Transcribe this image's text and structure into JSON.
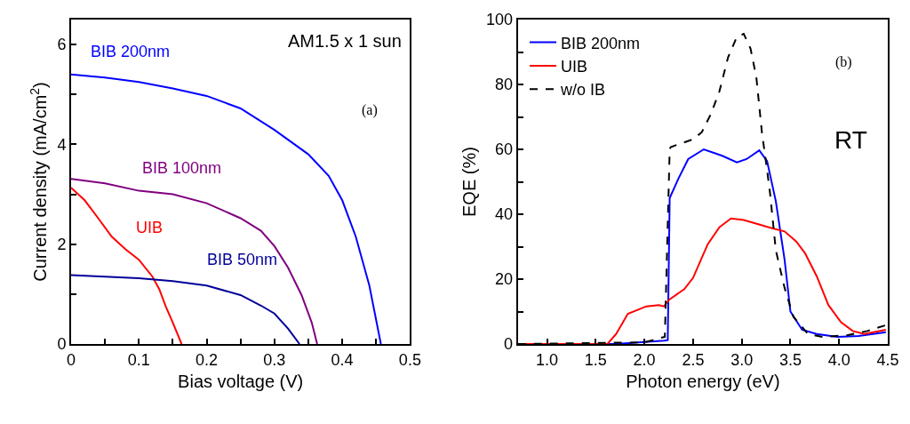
{
  "chart_data": [
    {
      "type": "line",
      "xlabel": "Bias voltage (V)",
      "ylabel": "Current density (mA/cm$^{2}$)",
      "xlim": [
        0,
        0.5
      ],
      "xticks": [
        0,
        0.1,
        0.2,
        0.3,
        0.4,
        0.5,
        {
          "value": 0.05,
          "label": null
        },
        {
          "value": 0.15,
          "label": null
        },
        {
          "value": 0.25,
          "label": null
        },
        {
          "value": 0.35,
          "label": null
        },
        {
          "value": 0.45,
          "label": null
        }
      ],
      "ylim": [
        0,
        6.5
      ],
      "yticks": [
        0,
        2,
        4,
        6,
        {
          "value": 1,
          "label": null
        },
        {
          "value": 3,
          "label": null
        },
        {
          "value": 5,
          "label": null
        }
      ],
      "legend": false,
      "marker": "none",
      "line_style": "solid",
      "annotations": [
        "AM1.5 x 1 sun",
        "(a)"
      ],
      "series": [
        {
          "name": "BIB 200nm",
          "color": "#0000ff",
          "x": [
            0,
            0.05,
            0.1,
            0.15,
            0.2,
            0.25,
            0.3,
            0.35,
            0.38,
            0.4,
            0.42,
            0.44,
            0.457
          ],
          "values": [
            5.4,
            5.34,
            5.25,
            5.12,
            4.97,
            4.72,
            4.29,
            3.8,
            3.37,
            2.88,
            2.15,
            1.17,
            0
          ]
        },
        {
          "name": "BIB 100nm",
          "color": "#800080",
          "x": [
            0,
            0.05,
            0.1,
            0.15,
            0.2,
            0.25,
            0.28,
            0.3,
            0.32,
            0.34,
            0.355,
            0.363
          ],
          "values": [
            3.31,
            3.22,
            3.07,
            3.0,
            2.82,
            2.52,
            2.27,
            1.96,
            1.53,
            0.98,
            0.43,
            0
          ]
        },
        {
          "name": "UIB",
          "color": "#ff0000",
          "x": [
            0,
            0.02,
            0.04,
            0.06,
            0.08,
            0.1,
            0.12,
            0.13,
            0.14,
            0.15,
            0.163
          ],
          "values": [
            3.13,
            2.88,
            2.52,
            2.15,
            1.9,
            1.69,
            1.35,
            1.1,
            0.74,
            0.43,
            0
          ]
        },
        {
          "name": "BIB 50nm",
          "color": "#000099",
          "x": [
            0,
            0.05,
            0.1,
            0.15,
            0.2,
            0.25,
            0.28,
            0.3,
            0.32,
            0.337
          ],
          "values": [
            1.38,
            1.35,
            1.32,
            1.26,
            1.17,
            0.98,
            0.77,
            0.61,
            0.31,
            0
          ]
        }
      ]
    },
    {
      "type": "line",
      "xlabel": "Photon energy (eV)",
      "ylabel": "EQE (%)",
      "xlim": [
        0.7,
        4.5
      ],
      "xticks": [
        {
          "value": 1.0,
          "label": "1.0"
        },
        1.5,
        {
          "value": 2.0,
          "label": "2.0"
        },
        2.5,
        {
          "value": 3.0,
          "label": "3.0"
        },
        3.5,
        {
          "value": 4.0,
          "label": "4.0"
        },
        4.5
      ],
      "ylim": [
        0,
        100
      ],
      "yticks": [
        0,
        20,
        40,
        60,
        80,
        100,
        {
          "value": 10,
          "label": null
        },
        {
          "value": 30,
          "label": null
        },
        {
          "value": 50,
          "label": null
        },
        {
          "value": 70,
          "label": null
        },
        {
          "value": 90,
          "label": null
        }
      ],
      "legend": "top left",
      "marker": "none",
      "annotations": [
        "(b)",
        "RT"
      ],
      "series": [
        {
          "name": "BIB 200nm",
          "color": "#0000ff",
          "line_style": "solid",
          "x": [
            0.7,
            1.7,
            2.0,
            2.2,
            2.24,
            2.26,
            2.35,
            2.45,
            2.61,
            2.8,
            2.95,
            3.05,
            3.18,
            3.26,
            3.35,
            3.44,
            3.5,
            3.62,
            3.77,
            3.98,
            4.2,
            4.48
          ],
          "values": [
            0,
            0,
            0.6,
            1,
            1.2,
            45,
            51,
            57,
            60,
            58,
            56,
            57,
            59.7,
            56.4,
            44,
            26,
            10,
            4.4,
            3.1,
            2.2,
            2.5,
            3.6
          ]
        },
        {
          "name": "UIB",
          "color": "#ff0000",
          "line_style": "solid",
          "x": [
            0.7,
            1.62,
            1.71,
            1.83,
            2.02,
            2.15,
            2.2,
            2.26,
            2.41,
            2.5,
            2.65,
            2.77,
            2.89,
            3.02,
            3.17,
            3.32,
            3.44,
            3.56,
            3.65,
            3.77,
            3.89,
            4.02,
            4.14,
            4.26,
            4.48
          ],
          "values": [
            0,
            0,
            3.1,
            9.3,
            11.6,
            12,
            11.6,
            13.8,
            16.9,
            20.4,
            30.7,
            36,
            38.7,
            38.2,
            36.9,
            35.6,
            34.7,
            31.6,
            28,
            20.9,
            12,
            6.7,
            4,
            3.1,
            4.4
          ]
        },
        {
          "name": "w/o IB",
          "color": "#000000",
          "line_style": "dashed",
          "x": [
            0.7,
            2.0,
            2.21,
            2.26,
            2.27,
            2.5,
            2.59,
            2.68,
            2.77,
            2.86,
            2.95,
            3.02,
            3.09,
            3.15,
            3.18,
            3.21,
            3.24,
            3.29,
            3.35,
            3.44,
            3.53,
            3.68,
            3.83,
            4.08,
            4.29,
            4.48
          ],
          "values": [
            0,
            0.5,
            2.2,
            60,
            60.7,
            63.1,
            65.3,
            70.7,
            77.8,
            88.4,
            94.7,
            95.6,
            91.1,
            82.2,
            73.3,
            64.4,
            58.2,
            46.7,
            28.9,
            17.3,
            8.4,
            3.1,
            2.2,
            2.7,
            4,
            5.8
          ]
        }
      ]
    }
  ]
}
